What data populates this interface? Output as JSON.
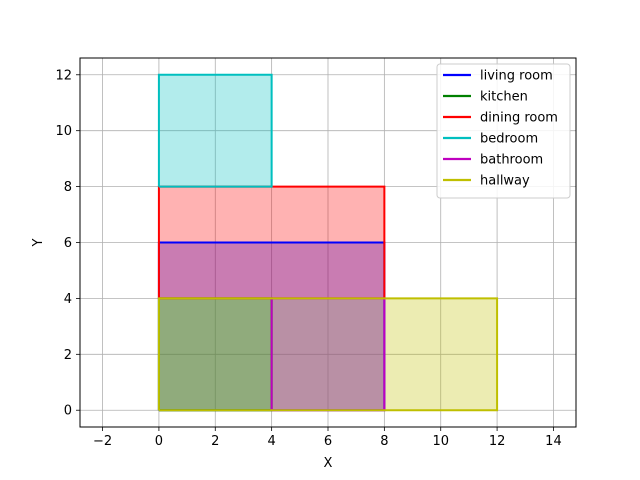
{
  "chart_data": {
    "type": "area",
    "title": "",
    "xlabel": "X",
    "ylabel": "Y",
    "xlim": [
      -2.8,
      14.8
    ],
    "ylim": [
      -0.6,
      12.6
    ],
    "xticks": [
      -2,
      0,
      2,
      4,
      6,
      8,
      10,
      12,
      14
    ],
    "yticks": [
      0,
      2,
      4,
      6,
      8,
      10,
      12
    ],
    "grid": true,
    "legend_position": "top-right",
    "series": [
      {
        "name": "living room",
        "color": "#0000ff",
        "fill": "#0000ff",
        "x": [
          0,
          8,
          8,
          0,
          0
        ],
        "y": [
          0,
          0,
          6,
          6,
          0
        ]
      },
      {
        "name": "kitchen",
        "color": "#008000",
        "fill": "#008000",
        "x": [
          0,
          4,
          4,
          0,
          0
        ],
        "y": [
          0,
          0,
          4,
          4,
          0
        ]
      },
      {
        "name": "dining room",
        "color": "#ff0000",
        "fill": "#ff0000",
        "x": [
          0,
          8,
          8,
          0,
          0
        ],
        "y": [
          4,
          4,
          8,
          8,
          4
        ]
      },
      {
        "name": "bedroom",
        "color": "#00bfbf",
        "fill": "#00bfbf",
        "x": [
          0,
          4,
          4,
          0,
          0
        ],
        "y": [
          8,
          8,
          12,
          12,
          8
        ]
      },
      {
        "name": "bathroom",
        "color": "#bf00bf",
        "fill": "#bf00bf",
        "x": [
          4,
          8,
          8,
          4,
          4
        ],
        "y": [
          0,
          0,
          4,
          4,
          0
        ]
      },
      {
        "name": "hallway",
        "color": "#bfbf00",
        "fill": "#bfbf00",
        "x": [
          0,
          12,
          12,
          0,
          0
        ],
        "y": [
          0,
          0,
          4,
          4,
          0
        ]
      }
    ]
  }
}
